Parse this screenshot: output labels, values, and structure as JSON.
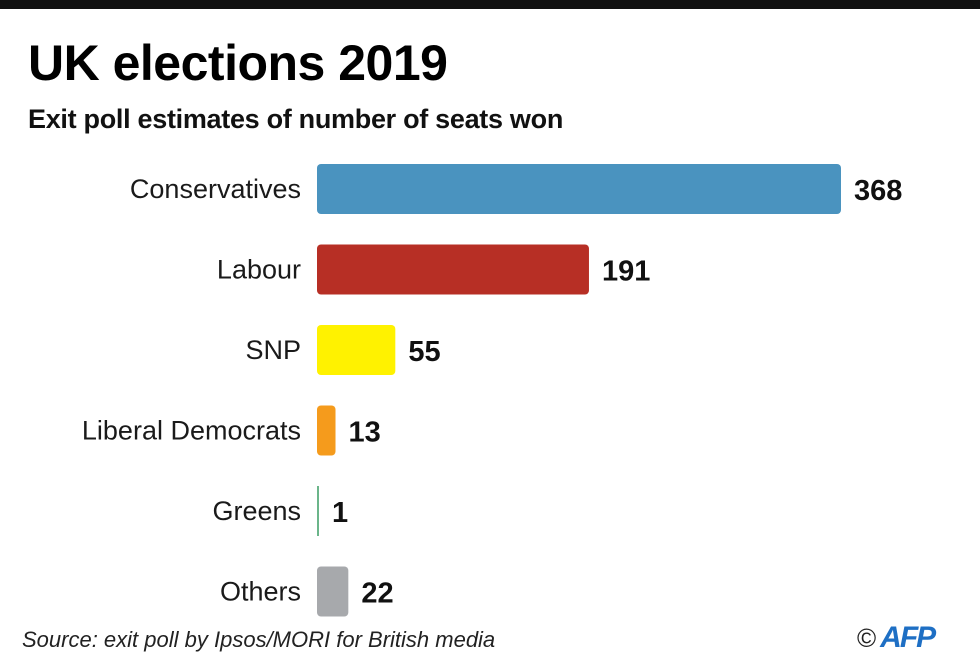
{
  "chart_data": {
    "type": "bar",
    "orientation": "horizontal",
    "title": "UK elections 2019",
    "subtitle": "Exit poll estimates of number of seats won",
    "categories": [
      "Conservatives",
      "Labour",
      "SNP",
      "Liberal Democrats",
      "Greens",
      "Others"
    ],
    "values": [
      368,
      191,
      55,
      13,
      1,
      22
    ],
    "colors": [
      "#4a93bf",
      "#b72f25",
      "#fff200",
      "#f59b1c",
      "#6bb58a",
      "#a7a9ac"
    ],
    "xlabel": "",
    "ylabel": "",
    "xlim": [
      0,
      368
    ],
    "grid": false,
    "legend": "none",
    "data_labels": true
  },
  "footer": {
    "source": "Source: exit poll by Ipsos/MORI for British media",
    "copyright_symbol": "©",
    "agency": "AFP"
  }
}
